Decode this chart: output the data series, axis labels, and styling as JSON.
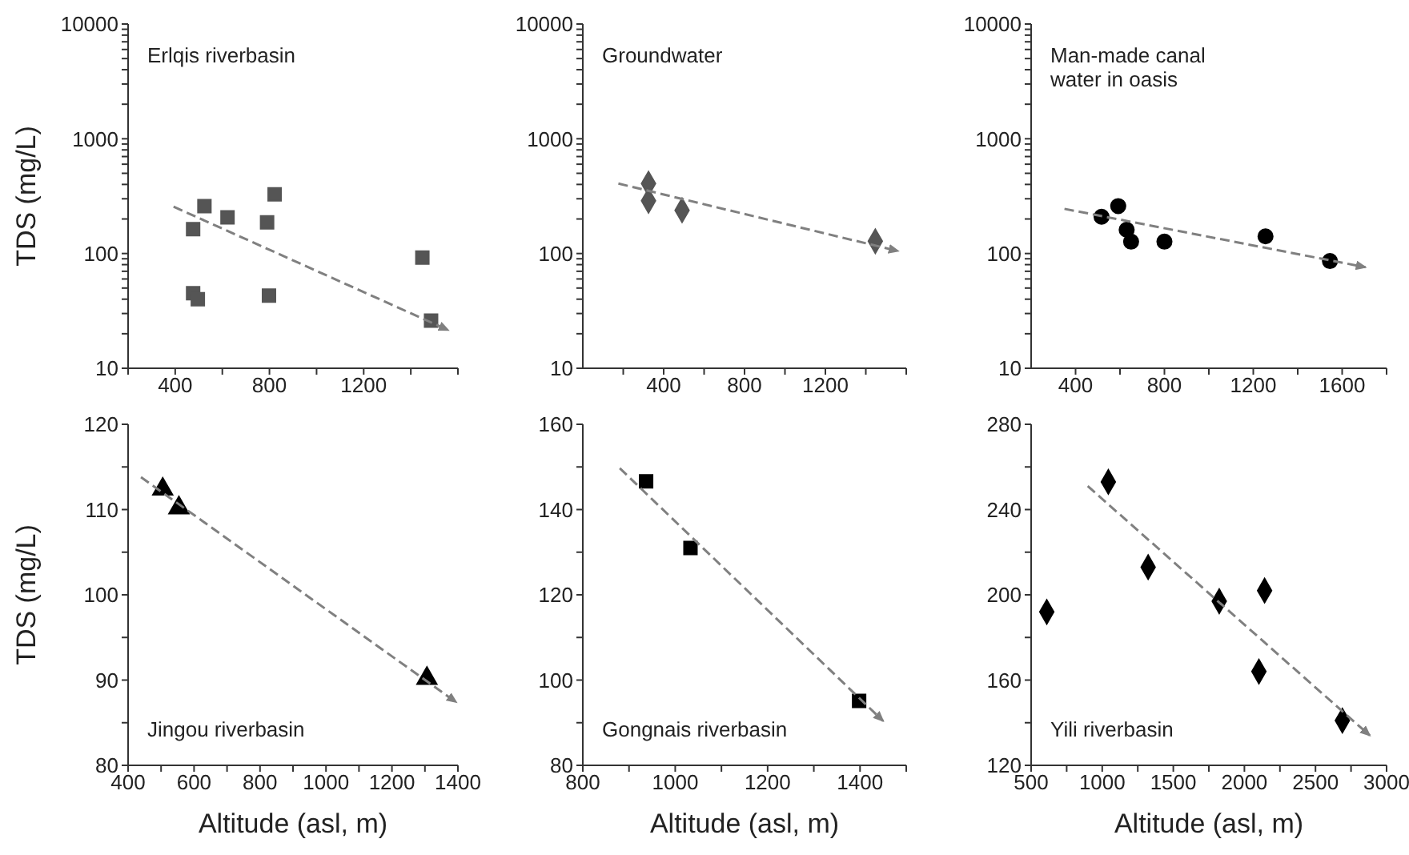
{
  "chart_data": [
    {
      "type": "scatter",
      "ylabel": "TDS (mg/L)",
      "log": true,
      "annotations": [
        "Erlqis riverbasin"
      ],
      "xlim": [
        200,
        1600
      ],
      "xticks": [
        {
          "value": 200,
          "label": null
        },
        400,
        {
          "value": 600,
          "label": null
        },
        800,
        {
          "value": 1000,
          "label": null
        },
        1200,
        {
          "value": 1400,
          "label": null
        },
        {
          "value": 1600,
          "label": null
        }
      ],
      "ylim": [
        10,
        10000
      ],
      "yticks": [
        10,
        {
          "value": 20,
          "label": null
        },
        {
          "value": 30,
          "label": null
        },
        {
          "value": 40,
          "label": null
        },
        {
          "value": 50,
          "label": null
        },
        {
          "value": 60,
          "label": null
        },
        {
          "value": 70,
          "label": null
        },
        {
          "value": 80,
          "label": null
        },
        {
          "value": 90,
          "label": null
        },
        100,
        {
          "value": 200,
          "label": null
        },
        {
          "value": 300,
          "label": null
        },
        {
          "value": 400,
          "label": null
        },
        {
          "value": 500,
          "label": null
        },
        {
          "value": 600,
          "label": null
        },
        {
          "value": 700,
          "label": null
        },
        {
          "value": 800,
          "label": null
        },
        {
          "value": 900,
          "label": null
        },
        1000,
        {
          "value": 2000,
          "label": null
        },
        {
          "value": 3000,
          "label": null
        },
        {
          "value": 4000,
          "label": null
        },
        {
          "value": 5000,
          "label": null
        },
        {
          "value": 6000,
          "label": null
        },
        {
          "value": 7000,
          "label": null
        },
        {
          "value": 8000,
          "label": null
        },
        {
          "value": 9000,
          "label": null
        },
        10000
      ],
      "series": [
        {
          "color": "#555555",
          "marker": "square",
          "x": [
            476,
            476,
            496,
            524,
            622,
            790,
            822,
            798,
            1449,
            1486
          ],
          "values": [
            163,
            45,
            40,
            259,
            207,
            187,
            328,
            43,
            92,
            26
          ]
        },
        {
          "type": "line",
          "color": "#808080",
          "line_style": "dashed",
          "marker": "none",
          "x": [
            393,
            1559
          ],
          "values": [
            256,
            21.5
          ]
        }
      ]
    },
    {
      "type": "scatter",
      "log": true,
      "annotations": [
        "Groundwater"
      ],
      "xlim": [
        0,
        1600
      ],
      "xticks": [
        {
          "value": 200,
          "label": null
        },
        400,
        {
          "value": 600,
          "label": null
        },
        800,
        {
          "value": 1000,
          "label": null
        },
        1200,
        {
          "value": 1400,
          "label": null
        },
        {
          "value": 1600,
          "label": null
        }
      ],
      "ylim": [
        10,
        10000
      ],
      "yticks": [
        10,
        {
          "value": 20,
          "label": null
        },
        {
          "value": 30,
          "label": null
        },
        {
          "value": 40,
          "label": null
        },
        {
          "value": 50,
          "label": null
        },
        {
          "value": 60,
          "label": null
        },
        {
          "value": 70,
          "label": null
        },
        {
          "value": 80,
          "label": null
        },
        {
          "value": 90,
          "label": null
        },
        100,
        {
          "value": 200,
          "label": null
        },
        {
          "value": 300,
          "label": null
        },
        {
          "value": 400,
          "label": null
        },
        {
          "value": 500,
          "label": null
        },
        {
          "value": 600,
          "label": null
        },
        {
          "value": 700,
          "label": null
        },
        {
          "value": 800,
          "label": null
        },
        {
          "value": 900,
          "label": null
        },
        1000,
        {
          "value": 2000,
          "label": null
        },
        {
          "value": 3000,
          "label": null
        },
        {
          "value": 4000,
          "label": null
        },
        {
          "value": 5000,
          "label": null
        },
        {
          "value": 6000,
          "label": null
        },
        {
          "value": 7000,
          "label": null
        },
        {
          "value": 8000,
          "label": null
        },
        {
          "value": 9000,
          "label": null
        },
        10000
      ],
      "series": [
        {
          "color": "#555555",
          "marker": "diamond",
          "x": [
            325,
            325,
            491,
            1447
          ],
          "values": [
            407,
            288,
            238,
            128
          ]
        },
        {
          "type": "line",
          "color": "#808080",
          "line_style": "dashed",
          "marker": "none",
          "x": [
            176,
            1560
          ],
          "values": [
            407,
            105
          ]
        }
      ]
    },
    {
      "type": "scatter",
      "log": true,
      "annotations": [
        "Man-made canal water in oasis"
      ],
      "xlim": [
        200,
        1800
      ],
      "xticks": [
        400,
        {
          "value": 600,
          "label": null
        },
        800,
        {
          "value": 1000,
          "label": null
        },
        1200,
        {
          "value": 1400,
          "label": null
        },
        1600,
        {
          "value": 1800,
          "label": null
        }
      ],
      "ylim": [
        10,
        10000
      ],
      "yticks": [
        10,
        {
          "value": 20,
          "label": null
        },
        {
          "value": 30,
          "label": null
        },
        {
          "value": 40,
          "label": null
        },
        {
          "value": 50,
          "label": null
        },
        {
          "value": 60,
          "label": null
        },
        {
          "value": 70,
          "label": null
        },
        {
          "value": 80,
          "label": null
        },
        {
          "value": 90,
          "label": null
        },
        100,
        {
          "value": 200,
          "label": null
        },
        {
          "value": 300,
          "label": null
        },
        {
          "value": 400,
          "label": null
        },
        {
          "value": 500,
          "label": null
        },
        {
          "value": 600,
          "label": null
        },
        {
          "value": 700,
          "label": null
        },
        {
          "value": 800,
          "label": null
        },
        {
          "value": 900,
          "label": null
        },
        1000,
        {
          "value": 2000,
          "label": null
        },
        {
          "value": 3000,
          "label": null
        },
        {
          "value": 4000,
          "label": null
        },
        {
          "value": 5000,
          "label": null
        },
        {
          "value": 6000,
          "label": null
        },
        {
          "value": 7000,
          "label": null
        },
        {
          "value": 8000,
          "label": null
        },
        {
          "value": 9000,
          "label": null
        },
        10000
      ],
      "series": [
        {
          "color": "#000000",
          "marker": "circle",
          "x": [
            517,
            592,
            630,
            650,
            800,
            1255,
            1545
          ],
          "values": [
            209,
            259,
            161,
            127,
            127,
            141,
            86
          ]
        },
        {
          "type": "line",
          "color": "#808080",
          "line_style": "dashed",
          "marker": "none",
          "x": [
            350,
            1705
          ],
          "values": [
            245,
            76
          ]
        }
      ]
    },
    {
      "type": "scatter",
      "ylabel": "TDS (mg/L)",
      "xlabel": "Altitude (asl, m)",
      "annotations": [
        "Jingou riverbasin"
      ],
      "xlim": [
        400,
        1400
      ],
      "xticks": [
        400,
        {
          "value": 500,
          "label": null
        },
        600,
        {
          "value": 700,
          "label": null
        },
        800,
        {
          "value": 900,
          "label": null
        },
        1000,
        {
          "value": 1100,
          "label": null
        },
        1200,
        {
          "value": 1300,
          "label": null
        },
        1400
      ],
      "ylim": [
        80,
        120
      ],
      "yticks": [
        80,
        {
          "value": 85,
          "label": null
        },
        90,
        {
          "value": 95,
          "label": null
        },
        100,
        {
          "value": 105,
          "label": null
        },
        110,
        {
          "value": 115,
          "label": null
        },
        120
      ],
      "series": [
        {
          "color": "#000000",
          "marker": "triangle",
          "x": [
            505,
            554,
            1306
          ],
          "values": [
            112.4,
            110.2,
            90.2
          ]
        },
        {
          "type": "line",
          "color": "#808080",
          "line_style": "dashed",
          "marker": "none",
          "x": [
            439,
            1395
          ],
          "values": [
            113.8,
            87.4
          ]
        }
      ]
    },
    {
      "type": "scatter",
      "xlabel": "Altitude (asl, m)",
      "annotations": [
        "Gongnais riverbasin"
      ],
      "xlim": [
        800,
        1500
      ],
      "xticks": [
        800,
        {
          "value": 900,
          "label": null
        },
        1000,
        {
          "value": 1100,
          "label": null
        },
        1200,
        {
          "value": 1300,
          "label": null
        },
        1400,
        {
          "value": 1500,
          "label": null
        }
      ],
      "ylim": [
        80,
        160
      ],
      "yticks": [
        80,
        {
          "value": 90,
          "label": null
        },
        100,
        {
          "value": 110,
          "label": null
        },
        120,
        {
          "value": 130,
          "label": null
        },
        140,
        {
          "value": 150,
          "label": null
        },
        160
      ],
      "series": [
        {
          "color": "#000000",
          "marker": "square",
          "x": [
            937,
            1033,
            1398
          ],
          "values": [
            146.6,
            131,
            95.1
          ]
        },
        {
          "type": "line",
          "color": "#808080",
          "line_style": "dashed",
          "marker": "none",
          "x": [
            880,
            1450
          ],
          "values": [
            149.7,
            90.4
          ]
        }
      ]
    },
    {
      "type": "scatter",
      "xlabel": "Altitude (asl, m)",
      "annotations": [
        "Yili riverbasin"
      ],
      "xlim": [
        500,
        3000
      ],
      "xticks": [
        500,
        {
          "value": 750,
          "label": null
        },
        1000,
        {
          "value": 1250,
          "label": null
        },
        1500,
        {
          "value": 1750,
          "label": null
        },
        2000,
        {
          "value": 2250,
          "label": null
        },
        2500,
        {
          "value": 2750,
          "label": null
        },
        3000
      ],
      "ylim": [
        120,
        280
      ],
      "yticks": [
        120,
        {
          "value": 140,
          "label": null
        },
        160,
        {
          "value": 180,
          "label": null
        },
        200,
        {
          "value": 220,
          "label": null
        },
        240,
        {
          "value": 260,
          "label": null
        },
        280
      ],
      "series": [
        {
          "color": "#000000",
          "marker": "diamond",
          "x": [
            610,
            1043,
            1323,
            1823,
            2142,
            2102,
            2689
          ],
          "values": [
            192,
            253,
            213,
            197,
            202,
            164,
            141
          ]
        },
        {
          "type": "line",
          "color": "#808080",
          "line_style": "dashed",
          "marker": "none",
          "x": [
            898,
            2882
          ],
          "values": [
            251,
            134
          ]
        }
      ]
    }
  ]
}
